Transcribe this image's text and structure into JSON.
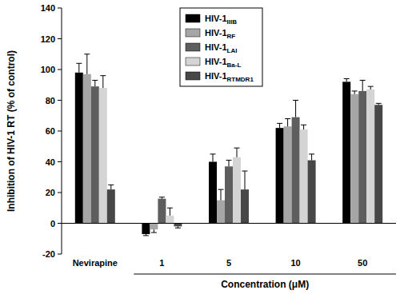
{
  "chart_data": {
    "type": "bar",
    "ylabel": "Inhibition of HIV-1 RT (% of control)",
    "xlabel": "Concentration (μM)",
    "categories": [
      "Nevirapine",
      "1",
      "5",
      "10",
      "50"
    ],
    "series": [
      {
        "name": "HIV-1IIIB",
        "color": "#000000",
        "values": [
          98,
          -7,
          40,
          62,
          92
        ],
        "errors": [
          6,
          1,
          5,
          3,
          2
        ]
      },
      {
        "name": "HIV-1RF",
        "color": "#a6a6a6",
        "values": [
          97,
          -4,
          15,
          63,
          84
        ],
        "errors": [
          13,
          2,
          7,
          5,
          2
        ]
      },
      {
        "name": "HIV-1LAI",
        "color": "#5e5e5e",
        "values": [
          89,
          16,
          37,
          69,
          86
        ],
        "errors": [
          4,
          1,
          4,
          11,
          7
        ]
      },
      {
        "name": "HIV-1Ba-L",
        "color": "#d4d4d4",
        "values": [
          88,
          5,
          43,
          61,
          87
        ],
        "errors": [
          8,
          5,
          6,
          3,
          2
        ]
      },
      {
        "name": "HIV-1RTMDR1",
        "color": "#474747",
        "values": [
          22,
          -2,
          22,
          41,
          77
        ],
        "errors": [
          3,
          1,
          12,
          4,
          1
        ]
      }
    ],
    "ylim": [
      -20,
      140
    ],
    "yticks": [
      -20,
      0,
      20,
      40,
      60,
      80,
      100,
      120,
      140
    ],
    "legend": "top",
    "grid": false
  }
}
